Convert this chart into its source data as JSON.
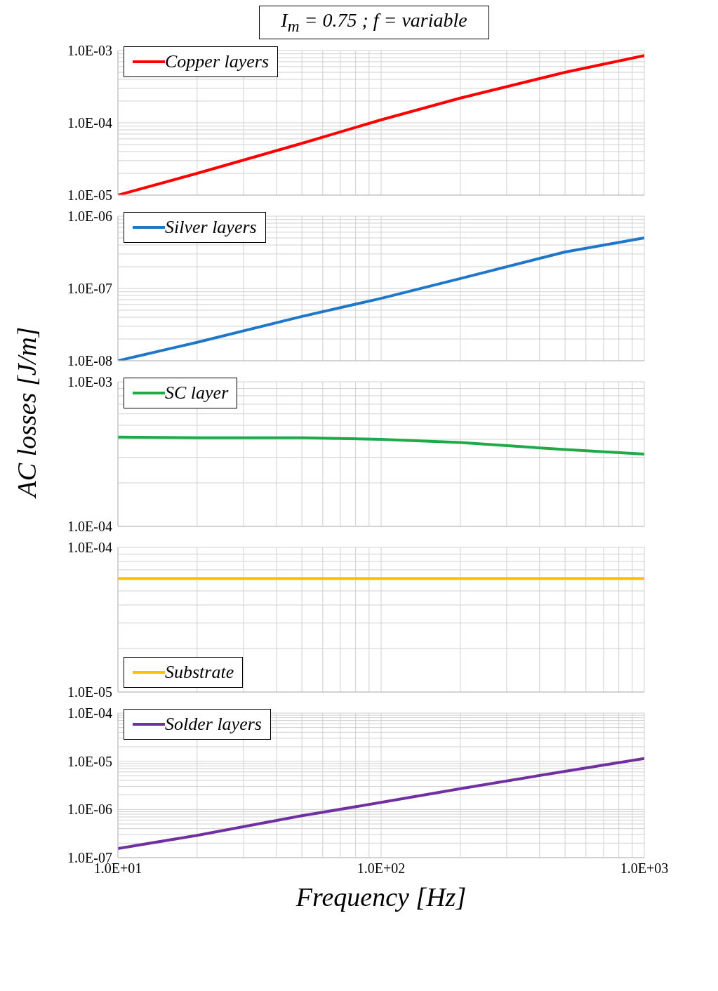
{
  "chart_data": [
    {
      "type": "line",
      "title": "I$_{m}$ = 0.75 ; f = variable",
      "log": "xy",
      "grid": true,
      "legend": "top left",
      "tick_labels": "y",
      "x": [
        10,
        20,
        50,
        100,
        200,
        500,
        1000
      ],
      "xlim": [
        10,
        1000
      ],
      "xticks": [
        {
          "value": 10,
          "label": null
        },
        {
          "value": 20,
          "label": null
        },
        {
          "value": 30,
          "label": null
        },
        {
          "value": 40,
          "label": null
        },
        {
          "value": 50,
          "label": null
        },
        {
          "value": 60,
          "label": null
        },
        {
          "value": 70,
          "label": null
        },
        {
          "value": 80,
          "label": null
        },
        {
          "value": 90,
          "label": null
        },
        {
          "value": 100,
          "label": null
        },
        {
          "value": 200,
          "label": null
        },
        {
          "value": 300,
          "label": null
        },
        {
          "value": 400,
          "label": null
        },
        {
          "value": 500,
          "label": null
        },
        {
          "value": 600,
          "label": null
        },
        {
          "value": 700,
          "label": null
        },
        {
          "value": 800,
          "label": null
        },
        {
          "value": 900,
          "label": null
        },
        {
          "value": 1000,
          "label": null
        }
      ],
      "ylim": [
        1e-05,
        0.001
      ],
      "yticks": [
        {
          "value": 1e-05,
          "label": "1.0E-05"
        },
        {
          "value": 2e-05,
          "label": null
        },
        {
          "value": 3e-05,
          "label": null
        },
        {
          "value": 4e-05,
          "label": null
        },
        {
          "value": 5e-05,
          "label": null
        },
        {
          "value": 6e-05,
          "label": null
        },
        {
          "value": 7e-05,
          "label": null
        },
        {
          "value": 8e-05,
          "label": null
        },
        {
          "value": 9e-05,
          "label": null
        },
        {
          "value": 0.0001,
          "label": "1.0E-04"
        },
        {
          "value": 0.0002,
          "label": null
        },
        {
          "value": 0.0003,
          "label": null
        },
        {
          "value": 0.0004,
          "label": null
        },
        {
          "value": 0.0005,
          "label": null
        },
        {
          "value": 0.0006,
          "label": null
        },
        {
          "value": 0.0007,
          "label": null
        },
        {
          "value": 0.0008,
          "label": null
        },
        {
          "value": 0.0009,
          "label": null
        },
        {
          "value": 0.001,
          "label": "1.0E-03"
        }
      ],
      "series": [
        {
          "name": "Copper layers",
          "color": "#ff0000",
          "values": [
            1e-05,
            2e-05,
            5.2e-05,
            0.00011,
            0.00022,
            0.0005,
            0.00085
          ]
        }
      ]
    },
    {
      "type": "line",
      "log": "xy",
      "grid": true,
      "legend": "top left",
      "tick_labels": "y",
      "x": [
        10,
        20,
        50,
        100,
        200,
        500,
        1000
      ],
      "xlim": [
        10,
        1000
      ],
      "xticks": [
        {
          "value": 10,
          "label": null
        },
        {
          "value": 20,
          "label": null
        },
        {
          "value": 30,
          "label": null
        },
        {
          "value": 40,
          "label": null
        },
        {
          "value": 50,
          "label": null
        },
        {
          "value": 60,
          "label": null
        },
        {
          "value": 70,
          "label": null
        },
        {
          "value": 80,
          "label": null
        },
        {
          "value": 90,
          "label": null
        },
        {
          "value": 100,
          "label": null
        },
        {
          "value": 200,
          "label": null
        },
        {
          "value": 300,
          "label": null
        },
        {
          "value": 400,
          "label": null
        },
        {
          "value": 500,
          "label": null
        },
        {
          "value": 600,
          "label": null
        },
        {
          "value": 700,
          "label": null
        },
        {
          "value": 800,
          "label": null
        },
        {
          "value": 900,
          "label": null
        },
        {
          "value": 1000,
          "label": null
        }
      ],
      "ylim": [
        1e-08,
        1e-06
      ],
      "yticks": [
        {
          "value": 1e-08,
          "label": "1.0E-08"
        },
        {
          "value": 2e-08,
          "label": null
        },
        {
          "value": 3e-08,
          "label": null
        },
        {
          "value": 4e-08,
          "label": null
        },
        {
          "value": 5e-08,
          "label": null
        },
        {
          "value": 6e-08,
          "label": null
        },
        {
          "value": 7e-08,
          "label": null
        },
        {
          "value": 8e-08,
          "label": null
        },
        {
          "value": 9e-08,
          "label": null
        },
        {
          "value": 1e-07,
          "label": "1.0E-07"
        },
        {
          "value": 2e-07,
          "label": null
        },
        {
          "value": 3e-07,
          "label": null
        },
        {
          "value": 4e-07,
          "label": null
        },
        {
          "value": 5e-07,
          "label": null
        },
        {
          "value": 6e-07,
          "label": null
        },
        {
          "value": 7e-07,
          "label": null
        },
        {
          "value": 8e-07,
          "label": null
        },
        {
          "value": 9e-07,
          "label": null
        },
        {
          "value": 1e-06,
          "label": "1.0E-06"
        }
      ],
      "series": [
        {
          "name": "Silver layers",
          "color": "#1f77c8",
          "values": [
            1e-08,
            1.8e-08,
            4.1e-08,
            7.3e-08,
            1.37e-07,
            3.2e-07,
            5e-07
          ]
        }
      ]
    },
    {
      "type": "line",
      "ylabel": "AC losses [J/m]",
      "log": "xy",
      "grid": true,
      "legend": "top left",
      "tick_labels": "y",
      "x": [
        10,
        20,
        50,
        100,
        200,
        500,
        1000
      ],
      "xlim": [
        10,
        1000
      ],
      "xticks": [
        {
          "value": 10,
          "label": null
        },
        {
          "value": 20,
          "label": null
        },
        {
          "value": 30,
          "label": null
        },
        {
          "value": 40,
          "label": null
        },
        {
          "value": 50,
          "label": null
        },
        {
          "value": 60,
          "label": null
        },
        {
          "value": 70,
          "label": null
        },
        {
          "value": 80,
          "label": null
        },
        {
          "value": 90,
          "label": null
        },
        {
          "value": 100,
          "label": null
        },
        {
          "value": 200,
          "label": null
        },
        {
          "value": 300,
          "label": null
        },
        {
          "value": 400,
          "label": null
        },
        {
          "value": 500,
          "label": null
        },
        {
          "value": 600,
          "label": null
        },
        {
          "value": 700,
          "label": null
        },
        {
          "value": 800,
          "label": null
        },
        {
          "value": 900,
          "label": null
        },
        {
          "value": 1000,
          "label": null
        }
      ],
      "ylim": [
        0.0001,
        0.001
      ],
      "yticks": [
        {
          "value": 0.0001,
          "label": "1.0E-04"
        },
        {
          "value": 0.0002,
          "label": null
        },
        {
          "value": 0.0003,
          "label": null
        },
        {
          "value": 0.0004,
          "label": null
        },
        {
          "value": 0.0005,
          "label": null
        },
        {
          "value": 0.0006,
          "label": null
        },
        {
          "value": 0.0007,
          "label": null
        },
        {
          "value": 0.0008,
          "label": null
        },
        {
          "value": 0.0009,
          "label": null
        },
        {
          "value": 0.001,
          "label": "1.0E-03"
        }
      ],
      "series": [
        {
          "name": "SC layer",
          "color": "#1faa4a",
          "values": [
            0.000415,
            0.00041,
            0.00041,
            0.0004,
            0.00038,
            0.00034,
            0.000316
          ]
        }
      ]
    },
    {
      "type": "line",
      "log": "xy",
      "grid": true,
      "legend": "bottom left",
      "tick_labels": "y",
      "x": [
        10,
        20,
        50,
        100,
        200,
        500,
        1000
      ],
      "xlim": [
        10,
        1000
      ],
      "xticks": [
        {
          "value": 10,
          "label": null
        },
        {
          "value": 20,
          "label": null
        },
        {
          "value": 30,
          "label": null
        },
        {
          "value": 40,
          "label": null
        },
        {
          "value": 50,
          "label": null
        },
        {
          "value": 60,
          "label": null
        },
        {
          "value": 70,
          "label": null
        },
        {
          "value": 80,
          "label": null
        },
        {
          "value": 90,
          "label": null
        },
        {
          "value": 100,
          "label": null
        },
        {
          "value": 200,
          "label": null
        },
        {
          "value": 300,
          "label": null
        },
        {
          "value": 400,
          "label": null
        },
        {
          "value": 500,
          "label": null
        },
        {
          "value": 600,
          "label": null
        },
        {
          "value": 700,
          "label": null
        },
        {
          "value": 800,
          "label": null
        },
        {
          "value": 900,
          "label": null
        },
        {
          "value": 1000,
          "label": null
        }
      ],
      "ylim": [
        1e-05,
        0.0001
      ],
      "yticks": [
        {
          "value": 1e-05,
          "label": "1.0E-05"
        },
        {
          "value": 2e-05,
          "label": null
        },
        {
          "value": 3e-05,
          "label": null
        },
        {
          "value": 4e-05,
          "label": null
        },
        {
          "value": 5e-05,
          "label": null
        },
        {
          "value": 6e-05,
          "label": null
        },
        {
          "value": 7e-05,
          "label": null
        },
        {
          "value": 8e-05,
          "label": null
        },
        {
          "value": 9e-05,
          "label": null
        },
        {
          "value": 0.0001,
          "label": "1.0E-04"
        }
      ],
      "series": [
        {
          "name": "Substrate",
          "color": "#ffc000",
          "values": [
            6.1e-05,
            6.1e-05,
            6.1e-05,
            6.1e-05,
            6.1e-05,
            6.1e-05,
            6.1e-05
          ]
        }
      ]
    },
    {
      "type": "line",
      "xlabel": "Frequency [Hz]",
      "log": "xy",
      "grid": true,
      "legend": "top left",
      "x": [
        10,
        20,
        50,
        100,
        200,
        500,
        1000
      ],
      "xlim": [
        10,
        1000
      ],
      "xticks": [
        {
          "value": 10,
          "label": "1.0E+01"
        },
        {
          "value": 20,
          "label": null
        },
        {
          "value": 30,
          "label": null
        },
        {
          "value": 40,
          "label": null
        },
        {
          "value": 50,
          "label": null
        },
        {
          "value": 60,
          "label": null
        },
        {
          "value": 70,
          "label": null
        },
        {
          "value": 80,
          "label": null
        },
        {
          "value": 90,
          "label": null
        },
        {
          "value": 100,
          "label": "1.0E+02"
        },
        {
          "value": 200,
          "label": null
        },
        {
          "value": 300,
          "label": null
        },
        {
          "value": 400,
          "label": null
        },
        {
          "value": 500,
          "label": null
        },
        {
          "value": 600,
          "label": null
        },
        {
          "value": 700,
          "label": null
        },
        {
          "value": 800,
          "label": null
        },
        {
          "value": 900,
          "label": null
        },
        {
          "value": 1000,
          "label": "1.0E+03"
        }
      ],
      "ylim": [
        1e-07,
        0.0001
      ],
      "yticks": [
        {
          "value": 1e-07,
          "label": "1.0E-07"
        },
        {
          "value": 2e-07,
          "label": null
        },
        {
          "value": 3e-07,
          "label": null
        },
        {
          "value": 4e-07,
          "label": null
        },
        {
          "value": 5e-07,
          "label": null
        },
        {
          "value": 6e-07,
          "label": null
        },
        {
          "value": 7e-07,
          "label": null
        },
        {
          "value": 8e-07,
          "label": null
        },
        {
          "value": 9e-07,
          "label": null
        },
        {
          "value": 1e-06,
          "label": "1.0E-06"
        },
        {
          "value": 2e-06,
          "label": null
        },
        {
          "value": 3e-06,
          "label": null
        },
        {
          "value": 4e-06,
          "label": null
        },
        {
          "value": 5e-06,
          "label": null
        },
        {
          "value": 6e-06,
          "label": null
        },
        {
          "value": 7e-06,
          "label": null
        },
        {
          "value": 8e-06,
          "label": null
        },
        {
          "value": 9e-06,
          "label": null
        },
        {
          "value": 1e-05,
          "label": "1.0E-05"
        },
        {
          "value": 2e-05,
          "label": null
        },
        {
          "value": 3e-05,
          "label": null
        },
        {
          "value": 4e-05,
          "label": null
        },
        {
          "value": 5e-05,
          "label": null
        },
        {
          "value": 6e-05,
          "label": null
        },
        {
          "value": 7e-05,
          "label": null
        },
        {
          "value": 8e-05,
          "label": null
        },
        {
          "value": 9e-05,
          "label": null
        },
        {
          "value": 0.0001,
          "label": "1.0E-04"
        }
      ],
      "series": [
        {
          "name": "Solder layers",
          "color": "#7030a0",
          "values": [
            1.55e-07,
            2.9e-07,
            7.4e-07,
            1.4e-06,
            2.7e-06,
            6.2e-06,
            1.14e-05
          ]
        }
      ]
    }
  ]
}
